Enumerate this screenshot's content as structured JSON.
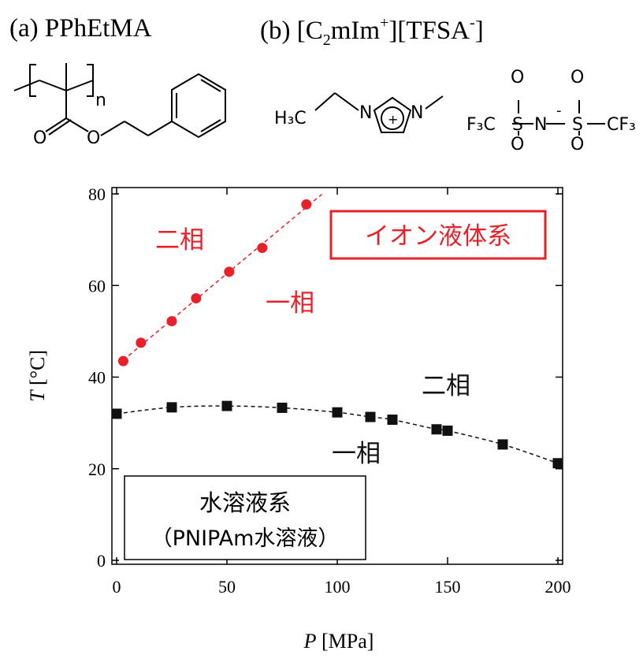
{
  "panel_a": {
    "tag": "(a)",
    "name": "PPhEtMA"
  },
  "panel_b": {
    "tag": "(b)",
    "name_parts": [
      "[C",
      "2",
      "mIm",
      "+",
      "][TFSA",
      "-",
      "]"
    ]
  },
  "structures": {
    "pphetma": {
      "n": "n",
      "carbonyl_o": "O",
      "ester_o": "O"
    },
    "cation": {
      "left_group": "H₃C",
      "n1": "N",
      "n2": "N",
      "charge": "+"
    },
    "anion": {
      "o1": "O",
      "o2": "O",
      "o3": "O",
      "o4": "O",
      "s1": "S",
      "s2": "S",
      "n": "N",
      "minus": "-",
      "cf3_left": "F₃C",
      "cf3_right": "CF₃"
    }
  },
  "colors": {
    "ionic": "#e8202a",
    "aqueous": "#111111",
    "axis": "#000000"
  },
  "chart_data": {
    "type": "scatter",
    "xlabel": {
      "var": "P",
      "unit": " [MPa]"
    },
    "ylabel": {
      "var": "T",
      "unit": " [°C]"
    },
    "xlim": [
      0,
      200
    ],
    "ylim": [
      0,
      80
    ],
    "xticks": [
      "0",
      "50",
      "100",
      "150",
      "200"
    ],
    "yticks": [
      "0",
      "20",
      "40",
      "60",
      "80"
    ],
    "grid": false,
    "series": [
      {
        "marker": "circle",
        "color": "#e8202a",
        "fit": "linear-dashed",
        "fit_range": [
          3,
          93
        ],
        "x": [
          3,
          11,
          25,
          36,
          51,
          66,
          86
        ],
        "y": [
          43.5,
          47.5,
          52.2,
          57.2,
          63.0,
          68.2,
          77.7
        ]
      },
      {
        "marker": "square",
        "color": "#111111",
        "fit": "smooth-dashed",
        "x": [
          0,
          25,
          50,
          75,
          100,
          115,
          125,
          145,
          150,
          175,
          200
        ],
        "y": [
          32.0,
          33.4,
          33.7,
          33.3,
          32.3,
          31.3,
          30.7,
          28.6,
          28.3,
          25.3,
          21.2
        ]
      }
    ],
    "annotations": {
      "ionic_box": "イオン液体系",
      "ionic_two_phase": "二相",
      "ionic_one_phase": "一相",
      "aq_two_phase": "二相",
      "aq_one_phase": "一相",
      "aq_box_line1": "水溶液系",
      "aq_box_line2": "（PNIPAm水溶液）"
    }
  }
}
